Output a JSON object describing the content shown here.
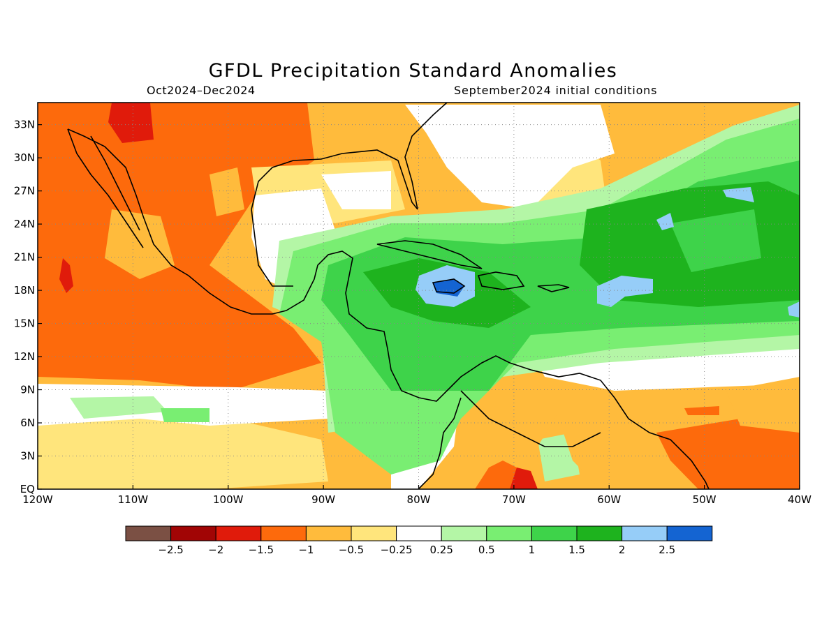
{
  "title": "GFDL Precipitation Standard Anomalies",
  "period": "Oct2024–Dec2024",
  "initial_conditions": "September2024 initial conditions",
  "lon_labels": [
    "120W",
    "110W",
    "100W",
    "90W",
    "80W",
    "70W",
    "60W",
    "50W",
    "40W"
  ],
  "lat_labels": [
    "EQ",
    "3N",
    "6N",
    "9N",
    "12N",
    "15N",
    "18N",
    "21N",
    "24N",
    "27N",
    "30N",
    "33N"
  ],
  "colorbar": {
    "colors": [
      "#7b5044",
      "#a10505",
      "#e01b0b",
      "#fd6a0c",
      "#ffbb3c",
      "#ffe57c",
      "#ffffff",
      "#b4f6a6",
      "#79ee72",
      "#3ed34a",
      "#1eb31e",
      "#96cdf8",
      "#1464d2"
    ],
    "labels": [
      "-2.5",
      "-2",
      "-1.5",
      "-1",
      "-0.5",
      "-0.25",
      "0.25",
      "0.5",
      "1",
      "1.5",
      "2",
      "2.5"
    ]
  },
  "map": {
    "lon_range": [
      -120,
      -40
    ],
    "lat_range": [
      0,
      35
    ]
  }
}
